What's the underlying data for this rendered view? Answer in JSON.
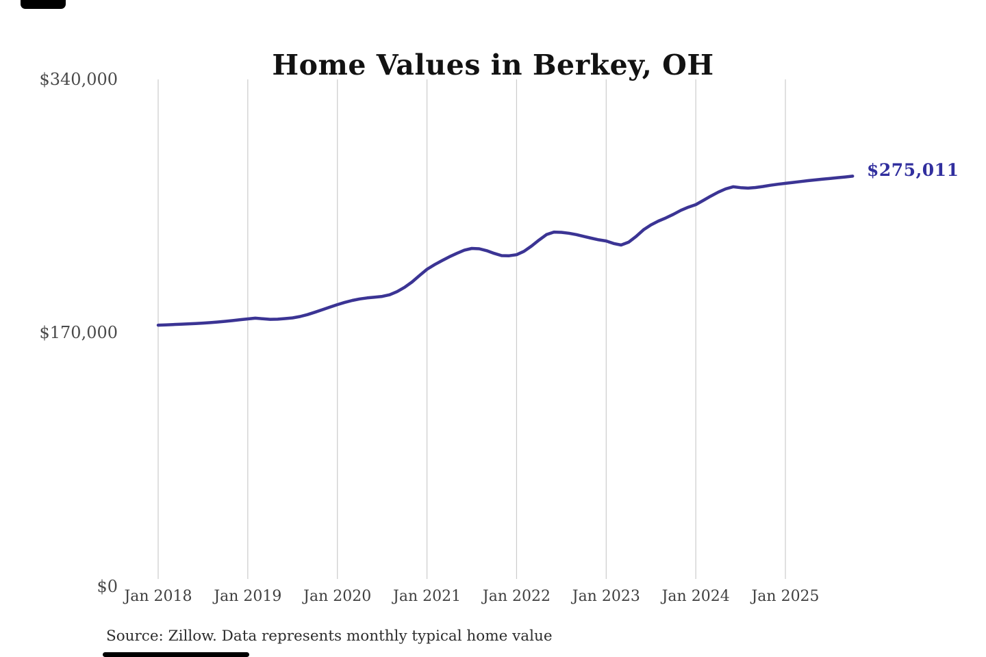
{
  "chart_data": {
    "type": "line",
    "title": "Home Values in Berkey, OH",
    "source_note": "Source: Zillow. Data represents monthly typical home value",
    "end_label": "$275,011",
    "final_value": 275011,
    "y_tick_labels": [
      "$340,000",
      "$170,000",
      "$0"
    ],
    "y_tick_values": [
      340000,
      170000,
      0
    ],
    "ylim": [
      0,
      340000
    ],
    "x_tick_labels": [
      "Jan 2018",
      "Jan 2019",
      "Jan 2020",
      "Jan 2021",
      "Jan 2022",
      "Jan 2023",
      "Jan 2024",
      "Jan 2025"
    ],
    "grid": "vertical-gridlines-only",
    "legend": "none",
    "line_color": "#3b3494",
    "annotation_color": "#312f9e",
    "gridline_color": "#cbcbcb",
    "series": [
      {
        "name": "Monthly typical home value",
        "start_month": "2018-01",
        "end_month": "2025-10",
        "interval": "monthly",
        "values": [
          175000,
          175200,
          175400,
          175600,
          175900,
          176100,
          176400,
          176700,
          177100,
          177600,
          178100,
          178700,
          179200,
          179700,
          179300,
          178900,
          179000,
          179400,
          179900,
          180800,
          182100,
          183700,
          185400,
          187100,
          188800,
          190300,
          191600,
          192600,
          193300,
          193800,
          194300,
          195400,
          197500,
          200400,
          204000,
          208300,
          212500,
          215600,
          218300,
          220900,
          223200,
          225300,
          226500,
          226300,
          225000,
          223200,
          221700,
          221600,
          222300,
          224600,
          228100,
          232100,
          235800,
          237500,
          237300,
          236700,
          235800,
          234600,
          233400,
          232300,
          231500,
          229800,
          228800,
          230700,
          234500,
          239000,
          242300,
          244900,
          247000,
          249400,
          252100,
          254200,
          255900,
          258700,
          261600,
          264300,
          266500,
          267900,
          267300,
          267000,
          267400,
          268100,
          268900,
          269600,
          270200,
          270800,
          271400,
          272000,
          272500,
          273000,
          273500,
          274000,
          274500,
          275011
        ]
      }
    ]
  }
}
